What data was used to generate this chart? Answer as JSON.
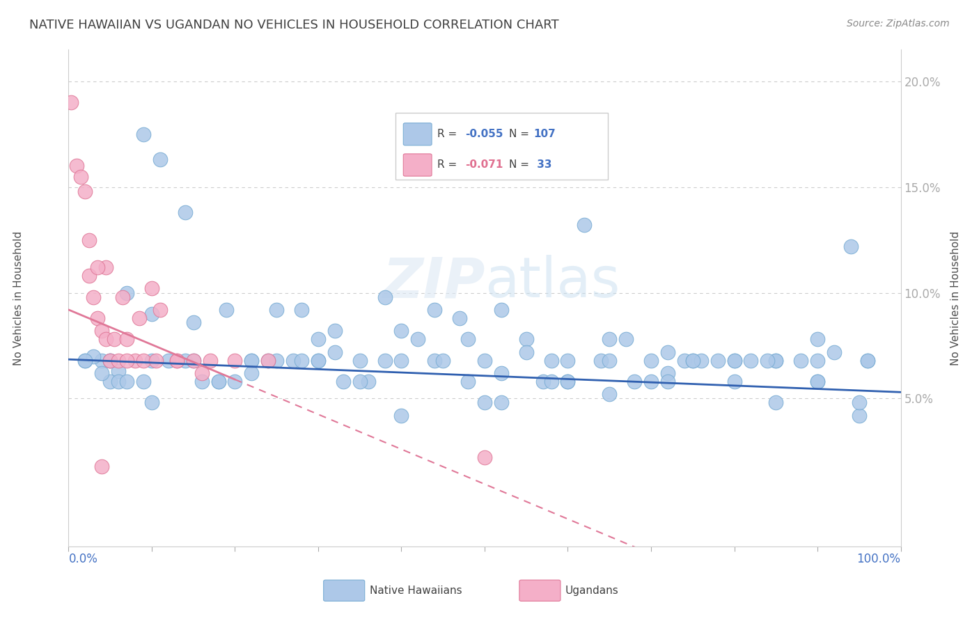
{
  "title": "NATIVE HAWAIIAN VS UGANDAN NO VEHICLES IN HOUSEHOLD CORRELATION CHART",
  "source": "Source: ZipAtlas.com",
  "ylabel": "No Vehicles in Household",
  "y_ticks": [
    0.05,
    0.1,
    0.15,
    0.2
  ],
  "y_tick_labels": [
    "5.0%",
    "10.0%",
    "15.0%",
    "20.0%"
  ],
  "x_range": [
    0,
    100
  ],
  "y_range": [
    -0.02,
    0.215
  ],
  "blue_color": "#adc8e8",
  "pink_color": "#f4afc8",
  "blue_edge_color": "#7aadd4",
  "pink_edge_color": "#e07898",
  "blue_line_color": "#3060b0",
  "pink_line_color": "#e07898",
  "title_color": "#404040",
  "source_color": "#888888",
  "axis_label_color": "#4472c4",
  "legend_r_color": "#4472c4",
  "legend_n_color": "#4472c4",
  "legend_r2_color": "#e07090",
  "legend_n2_color": "#4472c4",
  "watermark_zip": "ZIP",
  "watermark_atlas": "atlas",
  "blue_slope": -0.000155,
  "blue_intercept": 0.0685,
  "pink_slope": -0.00165,
  "pink_intercept": 0.092,
  "blue_x": [
    2,
    9,
    11,
    4,
    5,
    3,
    7,
    6,
    5,
    14,
    10,
    15,
    19,
    25,
    22,
    28,
    32,
    35,
    30,
    38,
    40,
    44,
    48,
    47,
    50,
    52,
    55,
    58,
    60,
    62,
    65,
    67,
    70,
    72,
    74,
    75,
    80,
    82,
    85,
    88,
    90,
    92,
    95,
    96,
    6,
    10,
    14,
    18,
    22,
    27,
    32,
    36,
    40,
    44,
    48,
    52,
    57,
    60,
    64,
    68,
    72,
    76,
    80,
    85,
    90,
    94,
    5,
    9,
    15,
    20,
    25,
    30,
    35,
    42,
    50,
    55,
    60,
    65,
    70,
    75,
    80,
    85,
    90,
    95,
    2,
    7,
    12,
    18,
    24,
    30,
    38,
    45,
    52,
    58,
    65,
    72,
    78,
    84,
    90,
    96,
    4,
    10,
    16,
    22,
    28,
    33,
    40
  ],
  "blue_y": [
    0.068,
    0.175,
    0.163,
    0.068,
    0.068,
    0.07,
    0.1,
    0.063,
    0.058,
    0.138,
    0.09,
    0.086,
    0.092,
    0.092,
    0.068,
    0.092,
    0.082,
    0.068,
    0.068,
    0.098,
    0.068,
    0.092,
    0.078,
    0.088,
    0.048,
    0.092,
    0.078,
    0.068,
    0.068,
    0.132,
    0.078,
    0.078,
    0.068,
    0.072,
    0.068,
    0.068,
    0.068,
    0.068,
    0.068,
    0.068,
    0.068,
    0.072,
    0.042,
    0.068,
    0.058,
    0.048,
    0.068,
    0.058,
    0.068,
    0.068,
    0.072,
    0.058,
    0.082,
    0.068,
    0.058,
    0.062,
    0.058,
    0.058,
    0.068,
    0.058,
    0.062,
    0.068,
    0.058,
    0.068,
    0.058,
    0.122,
    0.068,
    0.058,
    0.068,
    0.058,
    0.068,
    0.078,
    0.058,
    0.078,
    0.068,
    0.072,
    0.058,
    0.052,
    0.058,
    0.068,
    0.068,
    0.048,
    0.058,
    0.048,
    0.068,
    0.058,
    0.068,
    0.058,
    0.068,
    0.068,
    0.068,
    0.068,
    0.048,
    0.058,
    0.068,
    0.058,
    0.068,
    0.068,
    0.078,
    0.068,
    0.062,
    0.068,
    0.058,
    0.062,
    0.068,
    0.058,
    0.042
  ],
  "pink_x": [
    0.3,
    1.0,
    1.5,
    2.0,
    2.5,
    3.0,
    3.5,
    4.0,
    4.5,
    5.0,
    5.5,
    6.0,
    7.0,
    8.0,
    9.0,
    10.0,
    11.0,
    13.0,
    15.0,
    17.0,
    2.5,
    4.5,
    6.5,
    8.5,
    10.5,
    13.0,
    16.0,
    20.0,
    24.0,
    3.5,
    7.0,
    50.0,
    4.0
  ],
  "pink_y": [
    0.19,
    0.16,
    0.155,
    0.148,
    0.108,
    0.098,
    0.088,
    0.082,
    0.078,
    0.068,
    0.078,
    0.068,
    0.078,
    0.068,
    0.068,
    0.102,
    0.092,
    0.068,
    0.068,
    0.068,
    0.125,
    0.112,
    0.098,
    0.088,
    0.068,
    0.068,
    0.062,
    0.068,
    0.068,
    0.112,
    0.068,
    0.022,
    0.018
  ]
}
